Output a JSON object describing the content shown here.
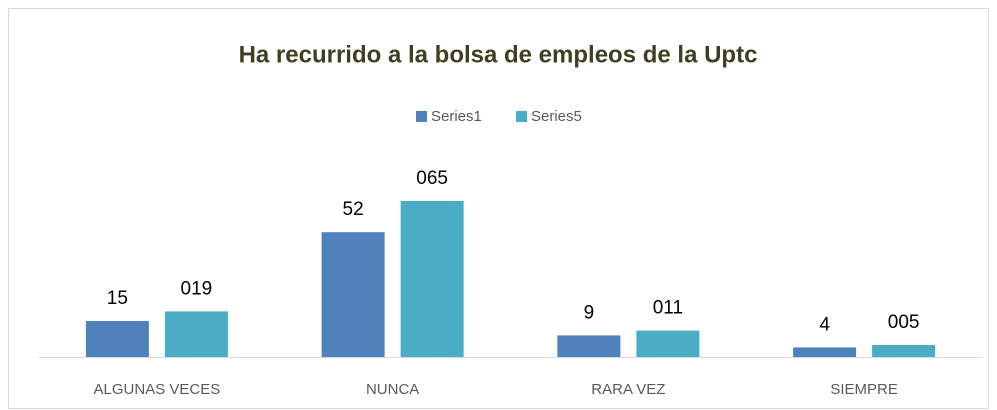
{
  "chart_data": {
    "type": "bar",
    "title": "Ha recurrido a la bolsa de empleos de la Uptc",
    "categories": [
      "ALGUNAS VECES",
      "NUNCA",
      "RARA VEZ",
      "SIEMPRE"
    ],
    "series": [
      {
        "name": "Series1",
        "color": "#4f81bd",
        "values": [
          15,
          52,
          9,
          4
        ]
      },
      {
        "name": "Series5",
        "color": "#4bacc6",
        "values": [
          19,
          65,
          11,
          5
        ],
        "value_labels": [
          "019",
          "065",
          "011",
          "005"
        ]
      }
    ],
    "legend": "top"
  }
}
